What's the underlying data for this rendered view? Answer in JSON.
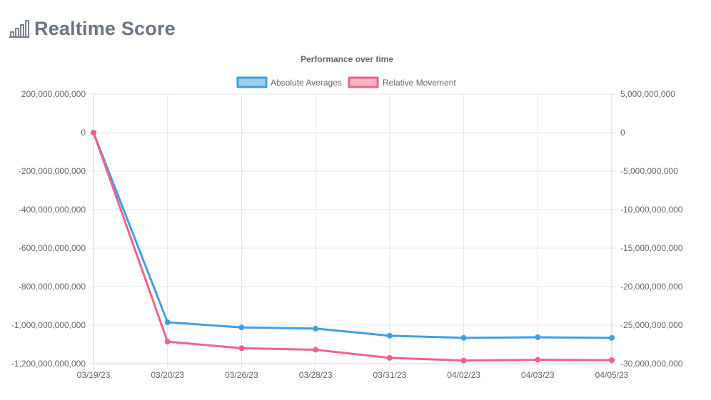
{
  "header": {
    "title": "Realtime Score",
    "icon": "bar-chart-icon"
  },
  "chart_data": {
    "type": "line",
    "title": "Performance over time",
    "categories": [
      "03/19/23",
      "03/20/23",
      "03/26/23",
      "03/28/23",
      "03/31/23",
      "04/02/23",
      "04/03/23",
      "04/05/23"
    ],
    "series": [
      {
        "name": "Absolute Averages",
        "axis": "left",
        "color": "#3fa0e2",
        "fill": "#9ecff0",
        "values": [
          0,
          -985000000000,
          -1012000000000,
          -1018000000000,
          -1055000000000,
          -1066000000000,
          -1063000000000,
          -1066000000000
        ]
      },
      {
        "name": "Relative Movement",
        "axis": "right",
        "color": "#f06386",
        "fill": "#f9b3c5",
        "values": [
          0,
          -27150000000,
          -28000000000,
          -28200000000,
          -29250000000,
          -29600000000,
          -29500000000,
          -29550000000
        ]
      }
    ],
    "y_left": {
      "ylim": [
        -1200000000000,
        200000000000
      ],
      "ticks": [
        200000000000,
        0,
        -200000000000,
        -400000000000,
        -600000000000,
        -800000000000,
        -1000000000000,
        -1200000000000
      ],
      "tick_labels": [
        "200,000,000,000",
        "0",
        "-200,000,000,000",
        "-400,000,000,000",
        "-600,000,000,000",
        "-800,000,000,000",
        "-1,000,000,000,000",
        "-1,200,000,000,000"
      ]
    },
    "y_right": {
      "ylim": [
        -30000000000,
        5000000000
      ],
      "ticks": [
        5000000000,
        0,
        -5000000000,
        -10000000000,
        -15000000000,
        -20000000000,
        -25000000000,
        -30000000000
      ],
      "tick_labels": [
        "5,000,000,000",
        "0",
        "-5,000,000,000",
        "-10,000,000,000",
        "-15,000,000,000",
        "-20,000,000,000",
        "-25,000,000,000",
        "-30,000,000,000"
      ]
    },
    "grid": true,
    "legend": "top"
  }
}
